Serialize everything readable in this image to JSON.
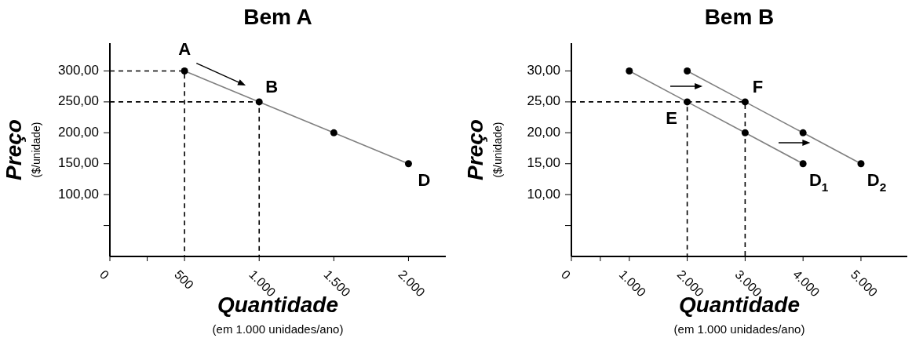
{
  "chart_data": [
    {
      "type": "line",
      "title": "Bem A",
      "xlabel": "Quantidade",
      "ylabel": "Preço",
      "xlim": [
        0,
        2250
      ],
      "ylim": [
        0,
        345
      ],
      "xticks": [
        {
          "value": 0,
          "label": "0"
        },
        {
          "value": 250,
          "label": null
        },
        {
          "value": 500,
          "label": "500"
        },
        {
          "value": 1000,
          "label": "1.000"
        },
        {
          "value": 1500,
          "label": "1.500"
        },
        {
          "value": 2000,
          "label": "2.000"
        }
      ],
      "yticks": [
        {
          "value": 50,
          "label": null
        },
        {
          "value": 100,
          "label": "100,00"
        },
        {
          "value": 150,
          "label": "150,00"
        },
        {
          "value": 200,
          "label": "200,00"
        },
        {
          "value": 250,
          "label": "250,00"
        },
        {
          "value": 300,
          "label": "300,00"
        }
      ],
      "grid": false,
      "legend": false,
      "series": [
        {
          "color": "#000000",
          "line_style": "dashed",
          "marker": "none",
          "x": [
            0,
            500,
            500
          ],
          "values": [
            300,
            300,
            0
          ]
        },
        {
          "color": "#000000",
          "line_style": "dashed",
          "marker": "none",
          "x": [
            0,
            1000,
            1000
          ],
          "values": [
            250,
            250,
            0
          ]
        },
        {
          "color": "#808080",
          "line_style": "solid",
          "marker": "none",
          "x": [
            500,
            1000,
            1500,
            2000
          ],
          "values": [
            300,
            250,
            200,
            150
          ]
        },
        {
          "type": "scatter",
          "color": "#000000",
          "marker": "circle",
          "x": [
            500,
            1000,
            1500,
            2000
          ],
          "values": [
            300,
            250,
            200,
            150
          ]
        }
      ],
      "annotations": [
        "($/unidade)",
        "(em 1.000 unidades/ano)",
        {
          "text": "A",
          "x": 500,
          "y": 300
        },
        {
          "text": "B",
          "x": 1000,
          "y": 250
        },
        {
          "text": "D",
          "x": 2000,
          "y": 150
        }
      ]
    },
    {
      "type": "line",
      "title": "Bem B",
      "xlabel": "Quantidade",
      "ylabel": "Preço",
      "xlim": [
        0,
        5800
      ],
      "ylim": [
        0,
        34.5
      ],
      "xticks": [
        {
          "value": 0,
          "label": "0"
        },
        {
          "value": 500,
          "label": null
        },
        {
          "value": 1000,
          "label": "1.000"
        },
        {
          "value": 2000,
          "label": "2.000"
        },
        {
          "value": 3000,
          "label": "3.000"
        },
        {
          "value": 4000,
          "label": "4.000"
        },
        {
          "value": 5000,
          "label": "5.000"
        }
      ],
      "yticks": [
        {
          "value": 5,
          "label": null
        },
        {
          "value": 10,
          "label": "10,00"
        },
        {
          "value": 15,
          "label": "15,00"
        },
        {
          "value": 20,
          "label": "20,00"
        },
        {
          "value": 25,
          "label": "25,00"
        },
        {
          "value": 30,
          "label": "30,00"
        }
      ],
      "grid": false,
      "legend": false,
      "series": [
        {
          "color": "#000000",
          "line_style": "dashed",
          "marker": "none",
          "x": [
            0,
            2000,
            2000
          ],
          "values": [
            25,
            25,
            0
          ]
        },
        {
          "color": "#000000",
          "line_style": "dashed",
          "marker": "none",
          "x": [
            2000,
            3000,
            3000
          ],
          "values": [
            25,
            25,
            0
          ]
        },
        {
          "color": "#808080",
          "line_style": "solid",
          "marker": "none",
          "x": [
            1000,
            2000,
            3000,
            4000
          ],
          "values": [
            30,
            25,
            20,
            15
          ]
        },
        {
          "color": "#808080",
          "line_style": "solid",
          "marker": "none",
          "x": [
            2000,
            3000,
            4000,
            5000
          ],
          "values": [
            30,
            25,
            20,
            15
          ]
        },
        {
          "type": "scatter",
          "color": "#000000",
          "marker": "circle",
          "x": [
            1000,
            2000,
            3000,
            4000
          ],
          "values": [
            30,
            25,
            20,
            15
          ]
        },
        {
          "type": "scatter",
          "color": "#000000",
          "marker": "circle",
          "x": [
            2000,
            3000,
            4000,
            5000
          ],
          "values": [
            30,
            25,
            20,
            15
          ]
        }
      ],
      "annotations": [
        "($/unidade)",
        "(em 1.000 unidades/ano)",
        {
          "text": "E",
          "x": 2000,
          "y": 25
        },
        {
          "text": "F",
          "x": 3000,
          "y": 25
        },
        {
          "text": "D$_{1}$",
          "x": 4000,
          "y": 15
        },
        {
          "text": "D$_{2}$",
          "x": 5000,
          "y": 15
        }
      ]
    }
  ]
}
